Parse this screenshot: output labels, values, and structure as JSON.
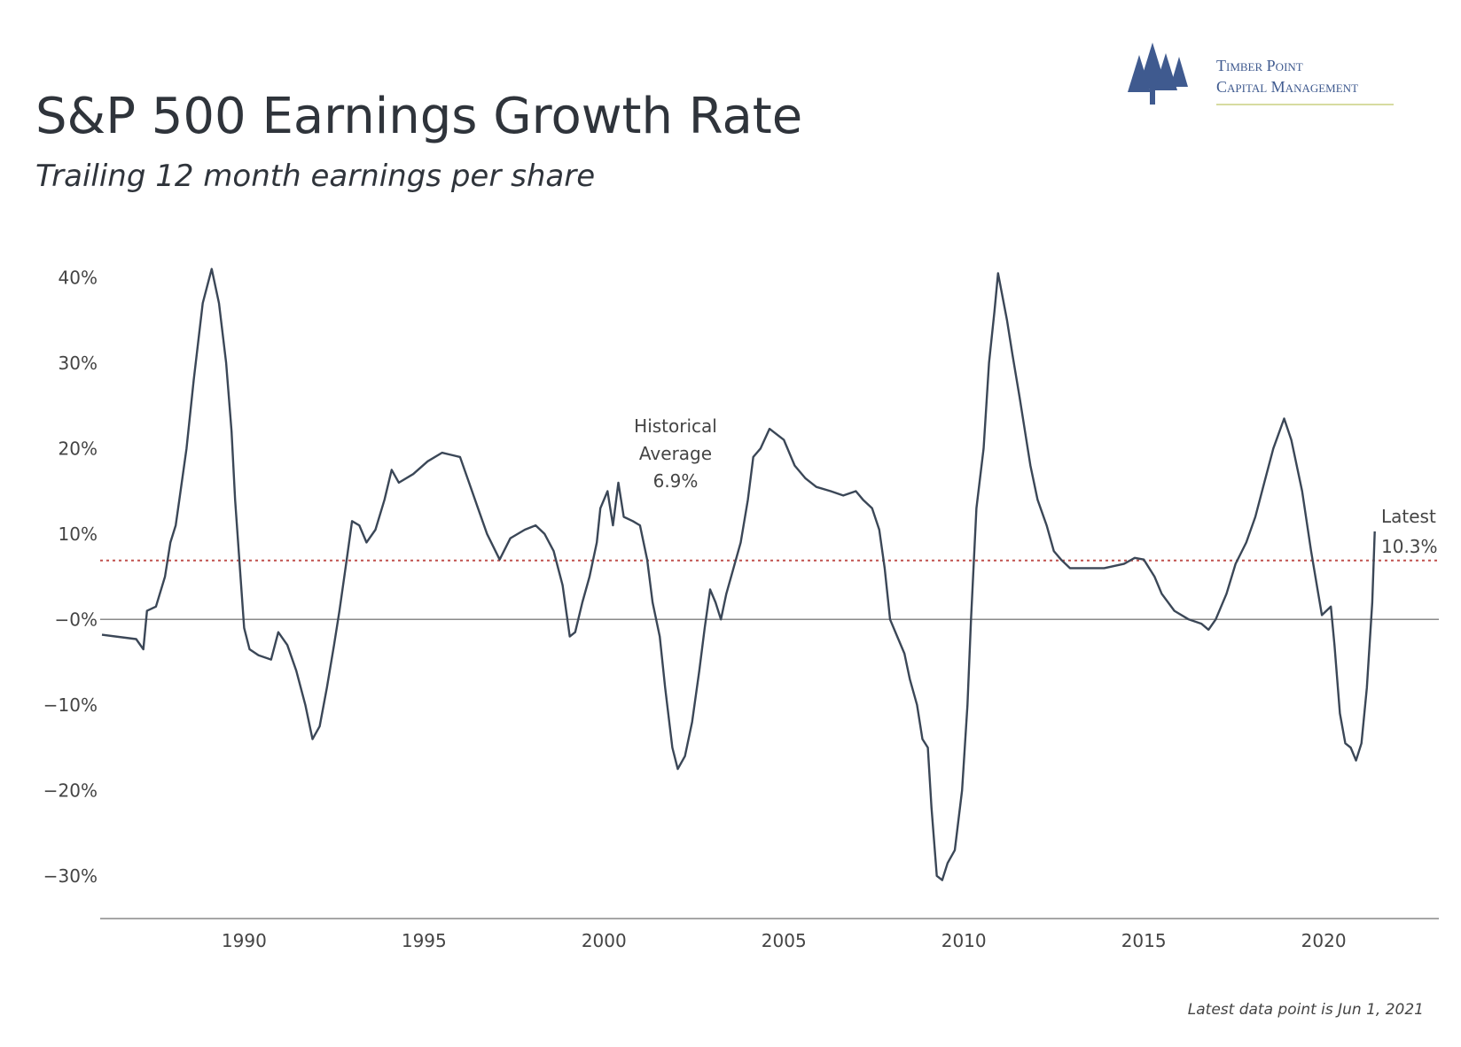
{
  "chart_data": {
    "type": "line",
    "title": "S&P 500 Earnings Growth Rate",
    "subtitle": "Trailing 12 month earnings per share",
    "brand": [
      "Timber Point",
      "Capital Management"
    ],
    "footnote": "Latest data point is Jun 1, 2021",
    "color": "#3b4757",
    "x": [
      1986.05,
      1987.0,
      1987.2,
      1987.3,
      1987.55,
      1987.8,
      1987.95,
      1988.1,
      1988.2,
      1988.4,
      1988.6,
      1988.85,
      1989.1,
      1989.3,
      1989.5,
      1989.65,
      1989.75,
      1989.9,
      1990.0,
      1990.15,
      1990.4,
      1990.75,
      1990.95,
      1991.2,
      1991.45,
      1991.7,
      1991.9,
      1992.1,
      1992.3,
      1992.5,
      1992.65,
      1992.85,
      1993.0,
      1993.2,
      1993.4,
      1993.65,
      1993.9,
      1994.1,
      1994.3,
      1994.7,
      1995.1,
      1995.5,
      1996.0,
      1996.25,
      1996.5,
      1996.75,
      1997.1,
      1997.4,
      1997.8,
      1998.1,
      1998.35,
      1998.6,
      1998.85,
      1999.05,
      1999.2,
      1999.4,
      1999.6,
      1999.8,
      1999.9,
      2000.1,
      2000.25,
      2000.4,
      2000.55,
      2000.8,
      2001.0,
      2001.2,
      2001.35,
      2001.55,
      2001.7,
      2001.9,
      2002.05,
      2002.25,
      2002.45,
      2002.65,
      2002.8,
      2002.95,
      2003.1,
      2003.25,
      2003.4,
      2003.6,
      2003.8,
      2004.0,
      2004.15,
      2004.35,
      2004.6,
      2005.0,
      2005.3,
      2005.6,
      2005.9,
      2006.3,
      2006.65,
      2007.0,
      2007.2,
      2007.45,
      2007.65,
      2007.8,
      2007.95,
      2008.15,
      2008.35,
      2008.5,
      2008.7,
      2008.85,
      2009.0,
      2009.1,
      2009.25,
      2009.4,
      2009.55,
      2009.75,
      2009.95,
      2010.1,
      2010.2,
      2010.35,
      2010.55,
      2010.7,
      2010.85,
      2010.95,
      2011.2,
      2011.35,
      2011.55,
      2011.85,
      2012.05,
      2012.3,
      2012.5,
      2012.7,
      2012.95,
      2013.4,
      2013.9,
      2014.45,
      2014.75,
      2015.0,
      2015.3,
      2015.5,
      2015.85,
      2016.25,
      2016.6,
      2016.8,
      2017.0,
      2017.3,
      2017.55,
      2017.85,
      2018.1,
      2018.35,
      2018.6,
      2018.9,
      2019.1,
      2019.4,
      2019.65,
      2019.85,
      2019.95,
      2020.2,
      2020.3,
      2020.45,
      2020.6,
      2020.75,
      2020.9,
      2021.05,
      2021.2,
      2021.35,
      2021.42
    ],
    "values": [
      -1.8,
      -2.3,
      -3.5,
      1,
      1.5,
      5,
      9,
      11,
      14,
      20,
      28,
      37,
      41,
      37,
      30,
      22,
      14,
      5,
      -1,
      -3.5,
      -4.2,
      -4.7,
      -1.5,
      -3,
      -6,
      -10,
      -14,
      -12.5,
      -8,
      -3,
      1,
      7,
      11.5,
      11,
      9,
      10.5,
      14,
      17.5,
      16,
      17,
      18.5,
      19.5,
      19,
      16,
      13,
      10,
      7,
      9.5,
      10.5,
      11,
      10,
      8,
      4,
      -2,
      -1.5,
      2,
      5,
      9,
      13,
      15,
      11,
      16,
      12,
      11.5,
      11,
      7,
      2,
      -2,
      -8,
      -15,
      -17.5,
      -16,
      -12,
      -6,
      -1,
      3.5,
      2,
      0,
      3,
      6,
      9,
      14,
      19,
      20,
      22.3,
      21,
      18,
      16.5,
      15.5,
      15,
      14.5,
      15,
      14,
      13,
      10.5,
      6,
      0,
      -2,
      -4,
      -7,
      -10,
      -14,
      -15,
      -22,
      -30,
      -30.5,
      -28.5,
      -27,
      -20,
      -10,
      0,
      13,
      20,
      30,
      36,
      40.5,
      35,
      31,
      26,
      18,
      14,
      11,
      8,
      7,
      6,
      6,
      6,
      6.5,
      7.2,
      7,
      5,
      3,
      1,
      0,
      -0.5,
      -1.2,
      0,
      3,
      6.5,
      9,
      12,
      16,
      20,
      23.5,
      21,
      15,
      8,
      3,
      0.5,
      1.5,
      -3,
      -11,
      -14.5,
      -15,
      -16.5,
      -14.5,
      -8,
      2,
      10.3
    ],
    "xlim": [
      1986,
      2023.2
    ],
    "xticks": [
      1990,
      1995,
      2000,
      2005,
      2010,
      2015,
      2020
    ],
    "ylim": [
      -35,
      42
    ],
    "yticks": [
      {
        "value": 40,
        "label": "40%"
      },
      {
        "value": 30,
        "label": "30%"
      },
      {
        "value": 20,
        "label": "20%"
      },
      {
        "value": 10,
        "label": "10%"
      },
      {
        "value": 0,
        "label": "−0%"
      },
      {
        "value": -10,
        "label": "−10%"
      },
      {
        "value": -20,
        "label": "−20%"
      },
      {
        "value": -30,
        "label": "−30%"
      }
    ],
    "zero_line": true,
    "average": {
      "value": 6.9,
      "color": "#c0504d",
      "label": [
        "Historical",
        "Average",
        "6.9%"
      ]
    },
    "latest_label": [
      "Latest",
      "10.3%"
    ]
  }
}
